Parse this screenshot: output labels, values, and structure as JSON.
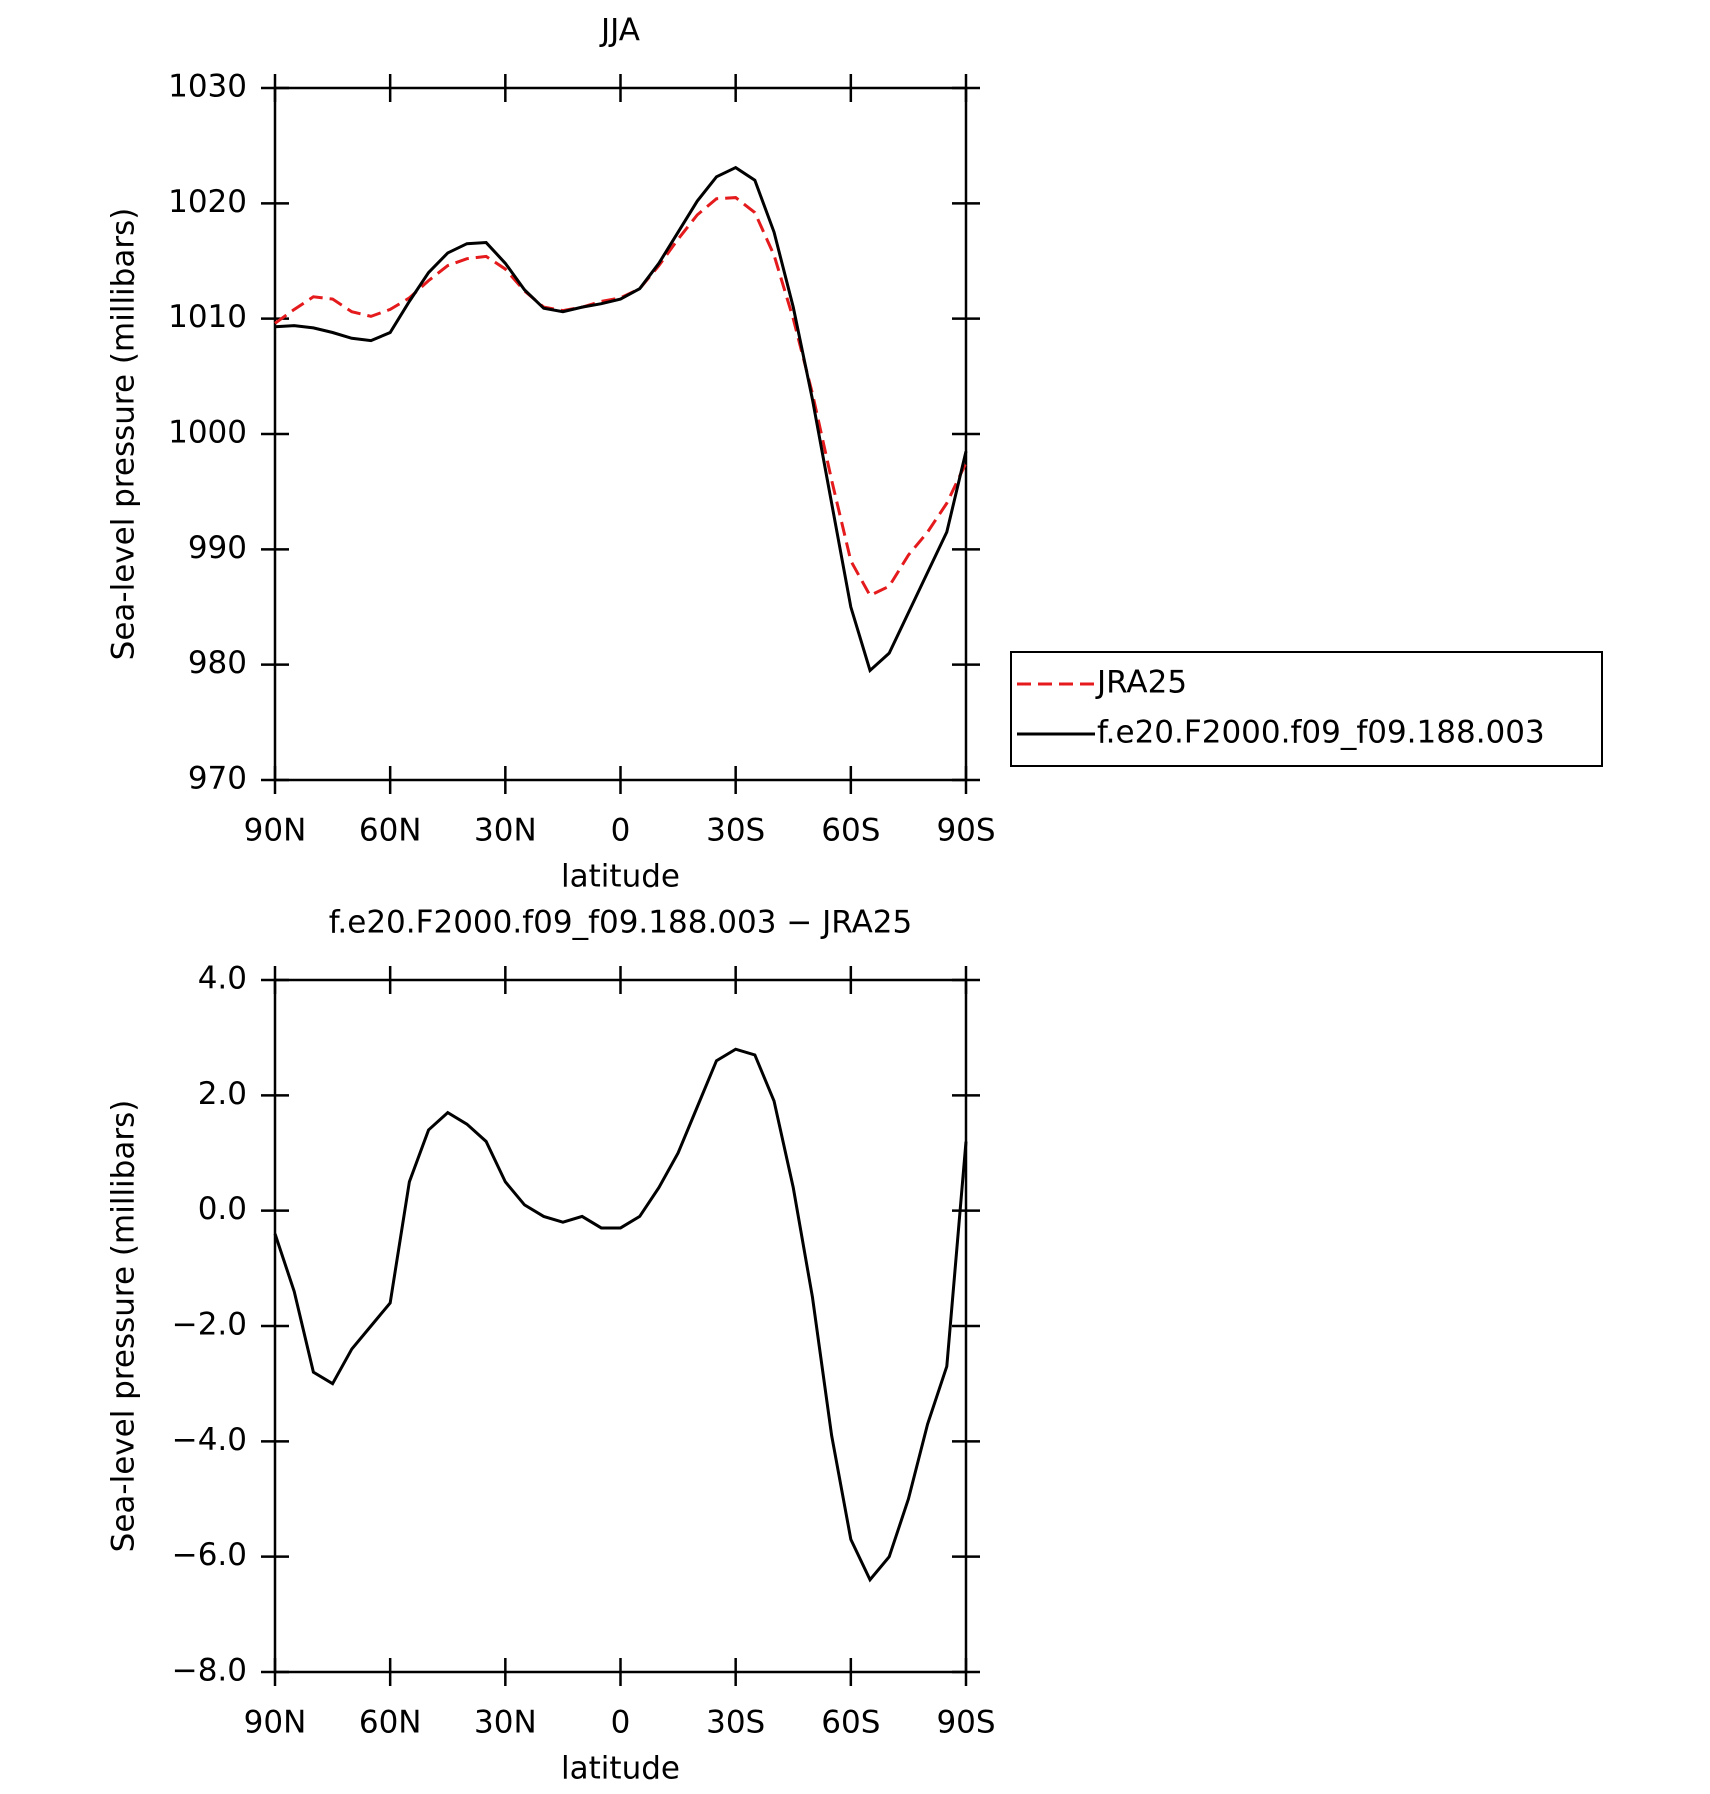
{
  "chart_data": [
    {
      "type": "line",
      "title": "JJA",
      "xlabel": "latitude",
      "ylabel": "Sea-level pressure (millibars)",
      "x": [
        90,
        85,
        80,
        75,
        70,
        65,
        60,
        55,
        50,
        45,
        40,
        35,
        30,
        25,
        20,
        15,
        10,
        5,
        0,
        -5,
        -10,
        -15,
        -20,
        -25,
        -30,
        -35,
        -40,
        -45,
        -50,
        -55,
        -60,
        -65,
        -70,
        -75,
        -80,
        -85,
        -90
      ],
      "series": [
        {
          "name": "JRA25",
          "color": "#e41a1c",
          "style": "dashed",
          "values": [
            1009.6,
            1010.8,
            1011.9,
            1011.7,
            1010.6,
            1010.2,
            1010.8,
            1011.8,
            1013.3,
            1014.6,
            1015.2,
            1015.4,
            1014.3,
            1012.4,
            1011,
            1010.7,
            1011,
            1011.5,
            1011.8,
            1012.6,
            1014.6,
            1016.9,
            1019,
            1020.4,
            1020.5,
            1019.2,
            1015.5,
            1010,
            1003.5,
            996,
            989,
            986,
            986.8,
            989.5,
            991.5,
            994,
            997.5
          ]
        },
        {
          "name": "f.e20.F2000.f09_f09.188.003",
          "color": "#000000",
          "style": "solid",
          "values": [
            1009.3,
            1009.4,
            1009.2,
            1008.8,
            1008.3,
            1008.1,
            1008.8,
            1011.5,
            1014,
            1015.7,
            1016.5,
            1016.6,
            1014.8,
            1012.5,
            1010.9,
            1010.6,
            1011,
            1011.3,
            1011.7,
            1012.6,
            1014.8,
            1017.5,
            1020.2,
            1022.3,
            1023.1,
            1022,
            1017.5,
            1011,
            1003,
            994,
            985,
            979.5,
            981,
            984.5,
            988,
            991.5,
            998.5
          ]
        }
      ],
      "xlim": [
        90,
        -90
      ],
      "xticks": [
        {
          "value": 90,
          "label": "90N"
        },
        {
          "value": 60,
          "label": "60N"
        },
        {
          "value": 30,
          "label": "30N"
        },
        0,
        {
          "value": -30,
          "label": "30S"
        },
        {
          "value": -60,
          "label": "60S"
        },
        {
          "value": -90,
          "label": "90S"
        }
      ],
      "ylim": [
        970,
        1030
      ],
      "yticks": [
        970,
        980,
        990,
        1000,
        1010,
        1020,
        1030
      ],
      "legend": "outside-right"
    },
    {
      "type": "line",
      "title": "f.e20.F2000.f09_f09.188.003 − JRA25",
      "xlabel": "latitude",
      "ylabel": "Sea-level pressure (millibars)",
      "x": [
        90,
        85,
        80,
        75,
        70,
        65,
        60,
        55,
        50,
        45,
        40,
        35,
        30,
        25,
        20,
        15,
        10,
        5,
        0,
        -5,
        -10,
        -15,
        -20,
        -25,
        -30,
        -35,
        -40,
        -45,
        -50,
        -55,
        -60,
        -65,
        -70,
        -75,
        -80,
        -85,
        -90
      ],
      "values": [
        -0.4,
        -1.4,
        -2.8,
        -3.0,
        -2.4,
        -2.0,
        -1.6,
        0.5,
        1.4,
        1.7,
        1.5,
        1.2,
        0.5,
        0.1,
        -0.1,
        -0.2,
        -0.1,
        -0.3,
        -0.3,
        -0.1,
        0.4,
        1.0,
        1.8,
        2.6,
        2.8,
        2.7,
        1.9,
        0.4,
        -1.5,
        -3.9,
        -5.7,
        -6.4,
        -6.0,
        -5.0,
        -3.7,
        -2.7,
        1.2
      ],
      "color": "#000000",
      "xlim": [
        90,
        -90
      ],
      "xticks": [
        {
          "value": 90,
          "label": "90N"
        },
        {
          "value": 60,
          "label": "60N"
        },
        {
          "value": 30,
          "label": "30N"
        },
        0,
        {
          "value": -30,
          "label": "30S"
        },
        {
          "value": -60,
          "label": "60S"
        },
        {
          "value": -90,
          "label": "90S"
        }
      ],
      "ylim": [
        -8,
        4
      ],
      "yticks": [
        {
          "value": -8,
          "label": "−8.0"
        },
        {
          "value": -6,
          "label": "−6.0"
        },
        {
          "value": -4,
          "label": "−4.0"
        },
        {
          "value": -2,
          "label": "−2.0"
        },
        {
          "value": 0,
          "label": "0.0"
        },
        {
          "value": 2,
          "label": "2.0"
        },
        {
          "value": 4,
          "label": "4.0"
        }
      ]
    }
  ]
}
